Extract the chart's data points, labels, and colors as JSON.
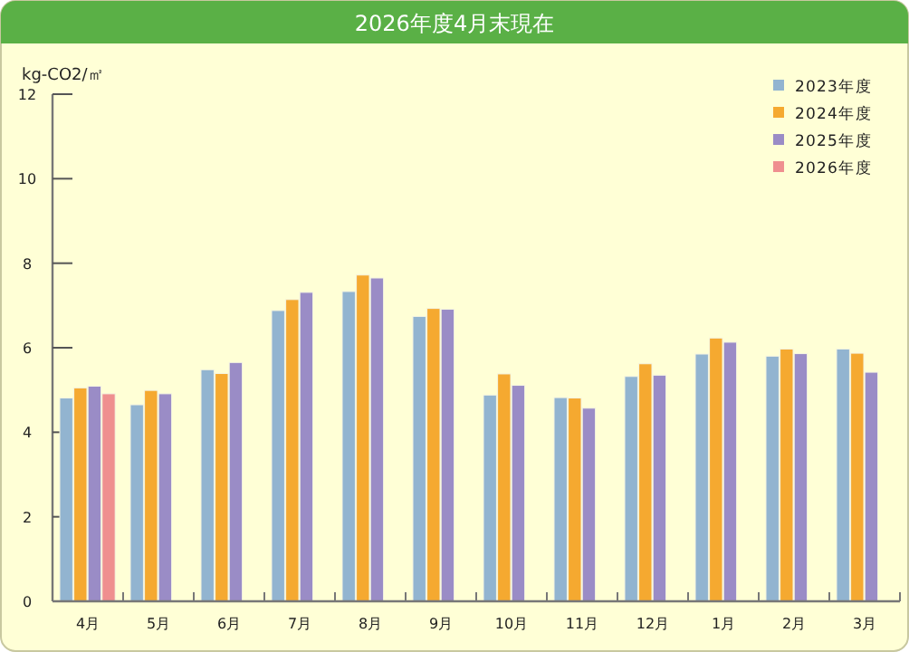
{
  "chart_data": {
    "type": "bar",
    "title": "2026年度4月末現在",
    "ylabel": "kg-CO2/㎡",
    "categories": [
      "4月",
      "5月",
      "6月",
      "7月",
      "8月",
      "9月",
      "10月",
      "11月",
      "12月",
      "1月",
      "2月",
      "3月"
    ],
    "ylim": [
      0,
      12
    ],
    "yticks": [
      0,
      2,
      4,
      6,
      8,
      10,
      12
    ],
    "legend": "top right",
    "series": [
      {
        "name": "2023年度",
        "color": "#92b4d0",
        "values": [
          4.81,
          4.65,
          5.48,
          6.88,
          7.33,
          6.74,
          4.88,
          4.82,
          5.32,
          5.85,
          5.8,
          5.97
        ]
      },
      {
        "name": "2024年度",
        "color": "#f5a930",
        "values": [
          5.05,
          4.99,
          5.39,
          7.14,
          7.72,
          6.93,
          5.38,
          4.81,
          5.62,
          6.23,
          5.97,
          5.87
        ]
      },
      {
        "name": "2025年度",
        "color": "#9a8cc6",
        "values": [
          5.09,
          4.91,
          5.65,
          7.31,
          7.65,
          6.91,
          5.11,
          4.57,
          5.35,
          6.13,
          5.86,
          5.42
        ]
      },
      {
        "name": "2026年度",
        "color": "#ef8f8f",
        "values": [
          4.91,
          null,
          null,
          null,
          null,
          null,
          null,
          null,
          null,
          null,
          null,
          null
        ]
      }
    ]
  }
}
